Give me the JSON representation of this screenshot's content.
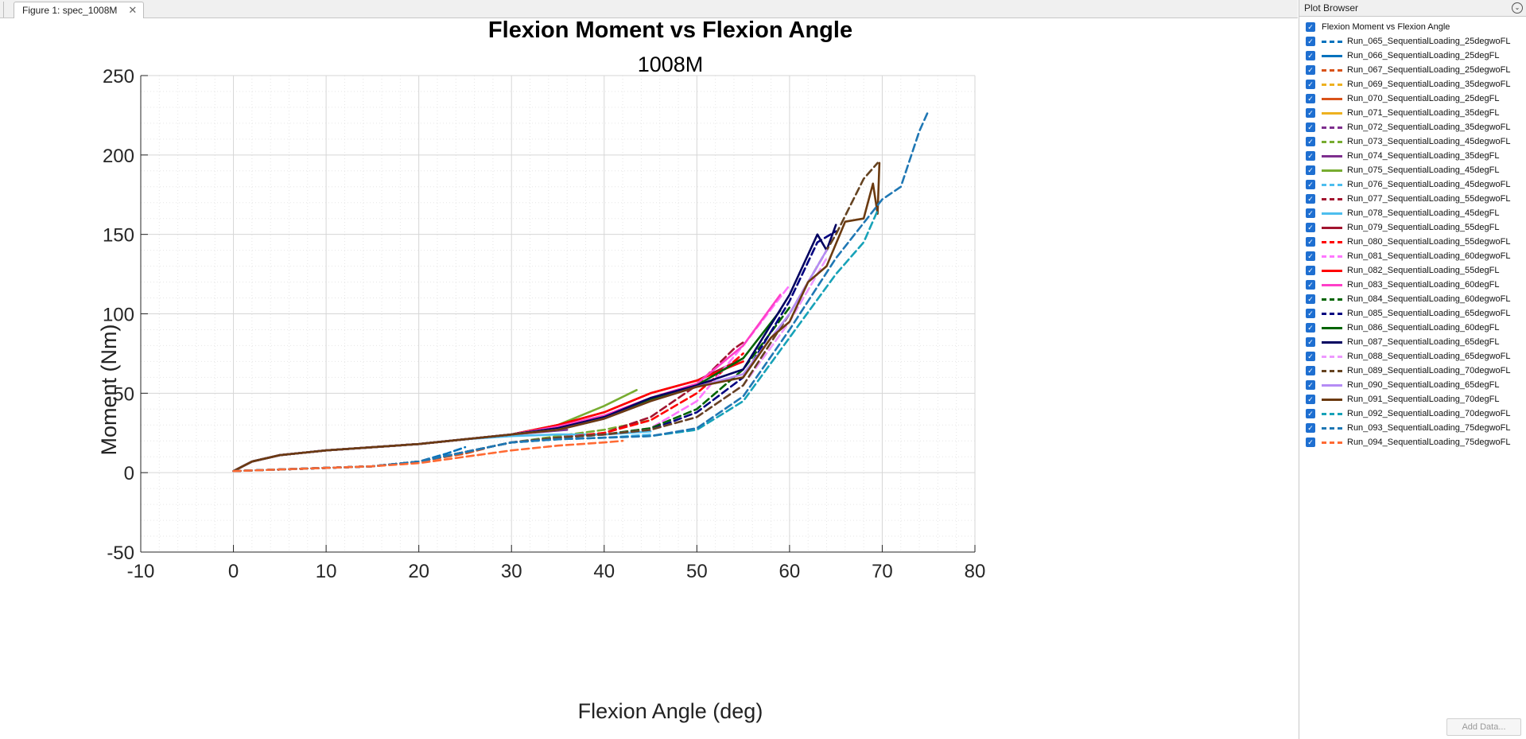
{
  "tab": {
    "label": "Figure 1: spec_1008M",
    "close": "✕"
  },
  "browser": {
    "title": "Plot Browser",
    "menu_icon": "⌄",
    "add_data": "Add Data...",
    "check_glyph": "✓"
  },
  "chart_data": {
    "type": "line",
    "title": "Flexion Moment vs Flexion Angle",
    "subtitle": "1008M",
    "xlabel": "Flexion Angle (deg)",
    "ylabel": "Moment (Nm)",
    "xlim": [
      -10,
      80
    ],
    "ylim": [
      -50,
      250
    ],
    "xticks": [
      "-10",
      "0",
      "10",
      "20",
      "30",
      "40",
      "50",
      "60",
      "70",
      "80"
    ],
    "yticks": [
      "-50",
      "0",
      "50",
      "100",
      "150",
      "200",
      "250"
    ],
    "grid": true,
    "minor_grid": true,
    "legend": "plot-browser-right",
    "series": [
      {
        "name": "Run_065_SequentialLoading_25degwoFL",
        "color": "#0072bd",
        "dash": true,
        "x": [
          0,
          5,
          10,
          15,
          20,
          23,
          25
        ],
        "y": [
          1,
          2,
          3,
          4,
          7,
          12,
          16
        ]
      },
      {
        "name": "Run_066_SequentialLoading_25degFL",
        "color": "#0072bd",
        "dash": false,
        "x": [
          0,
          2,
          5,
          10,
          15,
          20,
          25
        ],
        "y": [
          1,
          7,
          11,
          14,
          16,
          18,
          21
        ]
      },
      {
        "name": "Run_067_SequentialLoading_25degwoFL",
        "color": "#d95319",
        "dash": true,
        "x": [
          0,
          5,
          10,
          15,
          20,
          25,
          27
        ],
        "y": [
          1,
          2,
          3,
          4,
          7,
          12,
          15
        ]
      },
      {
        "name": "Run_069_SequentialLoading_35degwoFL",
        "color": "#edb120",
        "dash": true,
        "x": [
          0,
          5,
          10,
          15,
          20,
          25,
          30,
          35
        ],
        "y": [
          1,
          2,
          3,
          4,
          7,
          13,
          19,
          22
        ]
      },
      {
        "name": "Run_070_SequentialLoading_25degFL",
        "color": "#d95319",
        "dash": false,
        "x": [
          0,
          2,
          5,
          10,
          15,
          20,
          25
        ],
        "y": [
          1,
          7,
          11,
          14,
          16,
          18,
          21
        ]
      },
      {
        "name": "Run_071_SequentialLoading_35degFL",
        "color": "#edb120",
        "dash": false,
        "x": [
          0,
          2,
          5,
          10,
          15,
          20,
          25,
          30,
          35
        ],
        "y": [
          1,
          7,
          11,
          14,
          16,
          18,
          21,
          24,
          27
        ]
      },
      {
        "name": "Run_072_SequentialLoading_35degwoFL",
        "color": "#7e2f8e",
        "dash": true,
        "x": [
          0,
          5,
          10,
          15,
          20,
          25,
          30,
          36
        ],
        "y": [
          1,
          2,
          3,
          4,
          7,
          13,
          19,
          23
        ]
      },
      {
        "name": "Run_073_SequentialLoading_45degwoFL",
        "color": "#77ac30",
        "dash": true,
        "x": [
          0,
          5,
          10,
          15,
          20,
          25,
          30,
          35,
          40,
          45
        ],
        "y": [
          1,
          2,
          3,
          4,
          7,
          13,
          19,
          23,
          27,
          33
        ]
      },
      {
        "name": "Run_074_SequentialLoading_35degFL",
        "color": "#7e2f8e",
        "dash": false,
        "x": [
          0,
          2,
          5,
          10,
          15,
          20,
          25,
          30,
          36
        ],
        "y": [
          1,
          7,
          11,
          14,
          16,
          18,
          21,
          24,
          27
        ]
      },
      {
        "name": "Run_075_SequentialLoading_45degFL",
        "color": "#77ac30",
        "dash": false,
        "x": [
          0,
          2,
          5,
          10,
          15,
          20,
          25,
          30,
          35,
          40,
          43.5
        ],
        "y": [
          1,
          7,
          11,
          14,
          16,
          18,
          21,
          24,
          30,
          42,
          52
        ]
      },
      {
        "name": "Run_076_SequentialLoading_45degwoFL",
        "color": "#4dbeee",
        "dash": true,
        "x": [
          0,
          5,
          10,
          15,
          20,
          25,
          30,
          35,
          40,
          45
        ],
        "y": [
          1,
          2,
          3,
          4,
          7,
          13,
          19,
          21,
          22,
          24
        ]
      },
      {
        "name": "Run_077_SequentialLoading_55degwoFL",
        "color": "#a2142f",
        "dash": true,
        "x": [
          0,
          5,
          10,
          15,
          20,
          25,
          30,
          35,
          40,
          45,
          50,
          54,
          55
        ],
        "y": [
          1,
          2,
          3,
          4,
          7,
          13,
          19,
          22,
          25,
          35,
          55,
          78,
          82
        ]
      },
      {
        "name": "Run_078_SequentialLoading_45degFL",
        "color": "#4dbeee",
        "dash": false,
        "x": [
          0,
          2,
          5,
          10,
          15,
          20,
          25,
          30,
          35,
          40,
          45
        ],
        "y": [
          1,
          7,
          11,
          14,
          16,
          18,
          21,
          23,
          24,
          24,
          26
        ]
      },
      {
        "name": "Run_079_SequentialLoading_55degFL",
        "color": "#a2142f",
        "dash": false,
        "x": [
          0,
          2,
          5,
          10,
          15,
          20,
          25,
          30,
          35,
          40,
          45,
          50,
          55
        ],
        "y": [
          1,
          7,
          11,
          14,
          16,
          18,
          21,
          24,
          30,
          38,
          50,
          58,
          72
        ]
      },
      {
        "name": "Run_080_SequentialLoading_55degwoFL",
        "color": "#ff0000",
        "dash": true,
        "x": [
          0,
          5,
          10,
          15,
          20,
          25,
          30,
          35,
          40,
          45,
          50,
          55
        ],
        "y": [
          1,
          2,
          3,
          4,
          7,
          13,
          19,
          22,
          25,
          33,
          50,
          75
        ]
      },
      {
        "name": "Run_081_SequentialLoading_60degwoFL",
        "color": "#ff77ff",
        "dash": true,
        "x": [
          0,
          5,
          10,
          15,
          20,
          25,
          30,
          35,
          40,
          45,
          50,
          55,
          60
        ],
        "y": [
          1,
          2,
          3,
          4,
          7,
          13,
          19,
          22,
          24,
          28,
          45,
          80,
          118
        ]
      },
      {
        "name": "Run_082_SequentialLoading_55degFL",
        "color": "#ff0000",
        "dash": false,
        "x": [
          0,
          2,
          5,
          10,
          15,
          20,
          25,
          30,
          35,
          40,
          45,
          50,
          55
        ],
        "y": [
          1,
          7,
          11,
          14,
          16,
          18,
          21,
          24,
          30,
          38,
          50,
          58,
          70
        ]
      },
      {
        "name": "Run_083_SequentialLoading_60degFL",
        "color": "#ff3fc8",
        "dash": false,
        "x": [
          0,
          2,
          5,
          10,
          15,
          20,
          25,
          30,
          35,
          40,
          45,
          50,
          55,
          59
        ],
        "y": [
          1,
          7,
          11,
          14,
          16,
          18,
          21,
          24,
          29,
          36,
          47,
          56,
          80,
          112
        ]
      },
      {
        "name": "Run_084_SequentialLoading_60degwoFL",
        "color": "#006400",
        "dash": true,
        "x": [
          0,
          5,
          10,
          15,
          20,
          25,
          30,
          35,
          40,
          45,
          50,
          55,
          60
        ],
        "y": [
          1,
          2,
          3,
          4,
          7,
          13,
          19,
          22,
          24,
          28,
          40,
          65,
          104
        ]
      },
      {
        "name": "Run_085_SequentialLoading_65degwoFL",
        "color": "#000080",
        "dash": true,
        "x": [
          0,
          5,
          10,
          15,
          20,
          25,
          30,
          35,
          40,
          45,
          50,
          55,
          60,
          63,
          65
        ],
        "y": [
          1,
          2,
          3,
          4,
          7,
          13,
          19,
          22,
          24,
          27,
          38,
          60,
          108,
          145,
          152
        ]
      },
      {
        "name": "Run_086_SequentialLoading_60degFL",
        "color": "#006400",
        "dash": false,
        "x": [
          0,
          2,
          5,
          10,
          15,
          20,
          25,
          30,
          35,
          40,
          45,
          50,
          55,
          59
        ],
        "y": [
          1,
          7,
          11,
          14,
          16,
          18,
          21,
          24,
          28,
          35,
          46,
          55,
          72,
          102
        ]
      },
      {
        "name": "Run_087_SequentialLoading_65degFL",
        "color": "#000060",
        "dash": false,
        "x": [
          0,
          2,
          5,
          10,
          15,
          20,
          25,
          30,
          35,
          40,
          45,
          50,
          55,
          60,
          63,
          64,
          65
        ],
        "y": [
          1,
          7,
          11,
          14,
          16,
          18,
          21,
          24,
          28,
          35,
          47,
          55,
          65,
          112,
          150,
          140,
          156
        ]
      },
      {
        "name": "Run_088_SequentialLoading_65degwoFL",
        "color": "#ee99ff",
        "dash": true,
        "x": [
          0,
          5,
          10,
          15,
          20,
          25,
          30,
          35,
          40,
          45,
          50,
          55,
          60,
          64
        ],
        "y": [
          1,
          2,
          3,
          4,
          7,
          13,
          19,
          22,
          24,
          27,
          35,
          55,
          95,
          135
        ]
      },
      {
        "name": "Run_089_SequentialLoading_70degwoFL",
        "color": "#654321",
        "dash": true,
        "x": [
          0,
          5,
          10,
          15,
          20,
          25,
          30,
          35,
          40,
          45,
          50,
          55,
          60,
          65,
          68,
          69.5
        ],
        "y": [
          1,
          2,
          3,
          4,
          7,
          13,
          19,
          22,
          24,
          27,
          35,
          55,
          100,
          150,
          185,
          195
        ]
      },
      {
        "name": "Run_090_SequentialLoading_65degFL",
        "color": "#b58cf5",
        "dash": false,
        "x": [
          0,
          2,
          5,
          10,
          15,
          20,
          25,
          30,
          35,
          40,
          45,
          50,
          55,
          60,
          64
        ],
        "y": [
          1,
          7,
          11,
          14,
          16,
          18,
          21,
          24,
          27,
          34,
          45,
          54,
          62,
          100,
          140
        ]
      },
      {
        "name": "Run_091_SequentialLoading_70degFL",
        "color": "#6b3a10",
        "dash": false,
        "x": [
          0,
          2,
          5,
          10,
          15,
          20,
          25,
          30,
          35,
          40,
          45,
          50,
          55,
          58,
          60,
          62,
          64,
          66,
          68,
          69,
          69.5,
          69.7
        ],
        "y": [
          1,
          7,
          11,
          14,
          16,
          18,
          21,
          24,
          27,
          34,
          45,
          54,
          60,
          85,
          95,
          120,
          130,
          158,
          160,
          182,
          163,
          195
        ]
      },
      {
        "name": "Run_092_SequentialLoading_70degwoFL",
        "color": "#17a2b8",
        "dash": true,
        "x": [
          0,
          5,
          10,
          15,
          20,
          25,
          30,
          35,
          40,
          45,
          50,
          55,
          60,
          65,
          68,
          69.5
        ],
        "y": [
          1,
          2,
          3,
          4,
          7,
          13,
          19,
          21,
          22,
          23,
          27,
          45,
          85,
          125,
          145,
          165
        ]
      },
      {
        "name": "Run_093_SequentialLoading_75degwoFL",
        "color": "#1f77b4",
        "dash": true,
        "x": [
          0,
          5,
          10,
          15,
          20,
          25,
          30,
          35,
          40,
          45,
          50,
          55,
          60,
          65,
          70,
          72,
          74,
          75
        ],
        "y": [
          1,
          2,
          3,
          4,
          7,
          13,
          19,
          21,
          22,
          23,
          28,
          48,
          90,
          135,
          172,
          180,
          215,
          228
        ]
      },
      {
        "name": "Run_094_SequentialLoading_75degwoFL",
        "color": "#ff6a33",
        "dash": true,
        "x": [
          0,
          5,
          10,
          15,
          20,
          25,
          30,
          35,
          40,
          42
        ],
        "y": [
          1,
          2,
          3,
          4,
          6,
          10,
          14,
          17,
          19,
          20
        ]
      }
    ]
  }
}
